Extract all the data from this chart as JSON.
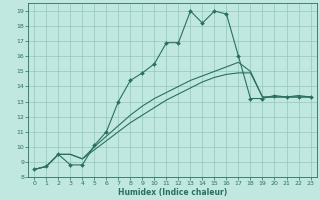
{
  "xlabel": "Humidex (Indice chaleur)",
  "bg_color": "#c0e8e0",
  "line_color": "#2a7060",
  "grid_color": "#90c8be",
  "xlim": [
    -0.5,
    23.5
  ],
  "ylim": [
    8,
    19.5
  ],
  "xticks": [
    0,
    1,
    2,
    3,
    4,
    5,
    6,
    7,
    8,
    9,
    10,
    11,
    12,
    13,
    14,
    15,
    16,
    17,
    18,
    19,
    20,
    21,
    22,
    23
  ],
  "yticks": [
    8,
    9,
    10,
    11,
    12,
    13,
    14,
    15,
    16,
    17,
    18,
    19
  ],
  "series": [
    {
      "x": [
        0,
        1,
        2,
        3,
        4,
        5,
        6,
        7,
        8,
        9,
        10,
        11,
        12,
        13,
        14,
        15,
        16,
        17,
        18,
        19,
        20,
        21,
        22,
        23
      ],
      "y": [
        8.5,
        8.7,
        9.5,
        8.8,
        8.8,
        10.1,
        11.0,
        13.0,
        14.4,
        14.9,
        15.5,
        16.9,
        16.9,
        19.0,
        18.2,
        19.0,
        18.8,
        16.0,
        13.2,
        13.2,
        13.4,
        13.3,
        13.3,
        13.3
      ],
      "marker": true
    },
    {
      "x": [
        0,
        1,
        2,
        3,
        4,
        5,
        6,
        7,
        8,
        9,
        10,
        11,
        12,
        13,
        14,
        15,
        16,
        17,
        18,
        19,
        20,
        21,
        22,
        23
      ],
      "y": [
        8.5,
        8.7,
        9.5,
        9.5,
        9.2,
        9.8,
        10.4,
        11.0,
        11.6,
        12.1,
        12.6,
        13.1,
        13.5,
        13.9,
        14.3,
        14.6,
        14.8,
        14.9,
        14.9,
        13.3,
        13.3,
        13.3,
        13.3,
        13.3
      ],
      "marker": false
    },
    {
      "x": [
        0,
        1,
        2,
        3,
        4,
        5,
        6,
        7,
        8,
        9,
        10,
        11,
        12,
        13,
        14,
        15,
        16,
        17,
        18,
        19,
        20,
        21,
        22,
        23
      ],
      "y": [
        8.5,
        8.7,
        9.5,
        9.5,
        9.2,
        10.0,
        10.7,
        11.4,
        12.1,
        12.7,
        13.2,
        13.6,
        14.0,
        14.4,
        14.7,
        15.0,
        15.3,
        15.6,
        15.0,
        13.3,
        13.3,
        13.3,
        13.4,
        13.3
      ],
      "marker": false
    }
  ]
}
